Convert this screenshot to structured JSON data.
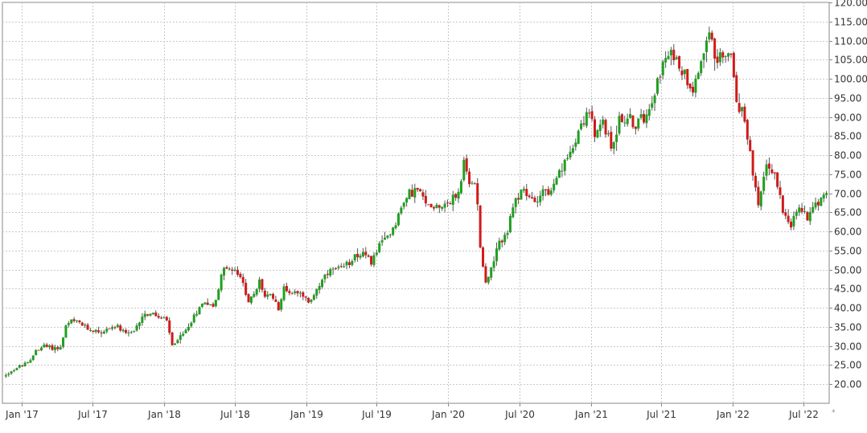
{
  "chart_data": {
    "type": "candlestick",
    "title": "",
    "xlabel": "",
    "ylabel": "",
    "ylim": [
      15,
      120
    ],
    "y_axis_side": "right",
    "grid": true,
    "y_ticks": [
      "20.00",
      "25.00",
      "30.00",
      "35.00",
      "40.00",
      "45.00",
      "50.00",
      "55.00",
      "60.00",
      "65.00",
      "70.00",
      "75.00",
      "80.00",
      "85.00",
      "90.00",
      "95.00",
      "100.00",
      "105.00",
      "110.00",
      "115.00",
      "120.00"
    ],
    "x_ticks": [
      {
        "date": "2017-01-01",
        "label": "Jan '17"
      },
      {
        "date": "2017-07-01",
        "label": "Jul '17"
      },
      {
        "date": "2018-01-01",
        "label": "Jan '18"
      },
      {
        "date": "2018-07-01",
        "label": "Jul '18"
      },
      {
        "date": "2019-01-01",
        "label": "Jan '19"
      },
      {
        "date": "2019-07-01",
        "label": "Jul '19"
      },
      {
        "date": "2020-01-01",
        "label": "Jan '20"
      },
      {
        "date": "2020-07-01",
        "label": "Jul '20"
      },
      {
        "date": "2021-01-01",
        "label": "Jan '21"
      },
      {
        "date": "2021-07-01",
        "label": "Jul '21"
      },
      {
        "date": "2022-01-01",
        "label": "Jan '22"
      },
      {
        "date": "2022-07-01",
        "label": "Jul '22"
      }
    ],
    "x_start_date": "2016-11-12",
    "x_end_date": "2022-09-05",
    "date_axis_marker": "*",
    "colors": {
      "up": "#1fa01f",
      "down": "#d11a1a",
      "grid": "#c8c8c8",
      "axis": "#888888",
      "text": "#333333"
    },
    "price_path": [
      [
        "2016-11-14",
        22
      ],
      [
        "2016-12-05",
        23.5
      ],
      [
        "2017-01-02",
        25
      ],
      [
        "2017-01-20",
        25.5
      ],
      [
        "2017-02-06",
        29
      ],
      [
        "2017-02-27",
        30
      ],
      [
        "2017-03-20",
        29.5
      ],
      [
        "2017-04-10",
        29.5
      ],
      [
        "2017-04-24",
        35
      ],
      [
        "2017-05-08",
        36.5
      ],
      [
        "2017-05-29",
        36
      ],
      [
        "2017-06-19",
        34.5
      ],
      [
        "2017-07-10",
        34
      ],
      [
        "2017-07-31",
        33.5
      ],
      [
        "2017-08-14",
        35
      ],
      [
        "2017-09-04",
        35
      ],
      [
        "2017-09-25",
        33
      ],
      [
        "2017-10-16",
        33.5
      ],
      [
        "2017-11-06",
        38
      ],
      [
        "2017-11-27",
        38.5
      ],
      [
        "2017-12-18",
        37.5
      ],
      [
        "2018-01-08",
        36.5
      ],
      [
        "2018-01-22",
        30
      ],
      [
        "2018-02-05",
        32
      ],
      [
        "2018-02-19",
        33
      ],
      [
        "2018-03-05",
        35.5
      ],
      [
        "2018-03-26",
        39
      ],
      [
        "2018-04-16",
        42
      ],
      [
        "2018-05-07",
        40
      ],
      [
        "2018-05-21",
        45
      ],
      [
        "2018-06-04",
        51
      ],
      [
        "2018-06-18",
        50
      ],
      [
        "2018-07-09",
        49
      ],
      [
        "2018-07-23",
        46
      ],
      [
        "2018-08-06",
        42
      ],
      [
        "2018-08-20",
        43
      ],
      [
        "2018-09-03",
        47
      ],
      [
        "2018-09-17",
        43
      ],
      [
        "2018-10-08",
        43
      ],
      [
        "2018-10-22",
        40
      ],
      [
        "2018-11-05",
        45
      ],
      [
        "2018-11-26",
        44
      ],
      [
        "2018-12-17",
        44.5
      ],
      [
        "2019-01-07",
        41
      ],
      [
        "2019-01-28",
        45
      ],
      [
        "2019-02-18",
        48
      ],
      [
        "2019-03-11",
        50
      ],
      [
        "2019-04-01",
        50
      ],
      [
        "2019-04-22",
        52
      ],
      [
        "2019-05-06",
        54
      ],
      [
        "2019-05-27",
        54
      ],
      [
        "2019-06-17",
        52
      ],
      [
        "2019-07-01",
        55
      ],
      [
        "2019-07-22",
        58
      ],
      [
        "2019-08-12",
        61
      ],
      [
        "2019-09-02",
        66
      ],
      [
        "2019-09-23",
        70
      ],
      [
        "2019-10-14",
        71
      ],
      [
        "2019-11-04",
        67
      ],
      [
        "2019-11-25",
        67
      ],
      [
        "2019-12-16",
        67
      ],
      [
        "2020-01-06",
        68
      ],
      [
        "2020-01-27",
        70
      ],
      [
        "2020-02-10",
        78
      ],
      [
        "2020-02-24",
        72
      ],
      [
        "2020-03-09",
        73
      ],
      [
        "2020-03-16",
        68
      ],
      [
        "2020-03-23",
        56
      ],
      [
        "2020-04-06",
        47
      ],
      [
        "2020-04-20",
        50
      ],
      [
        "2020-05-11",
        57
      ],
      [
        "2020-06-01",
        60
      ],
      [
        "2020-06-15",
        66
      ],
      [
        "2020-07-06",
        71
      ],
      [
        "2020-07-20",
        69
      ],
      [
        "2020-08-10",
        68
      ],
      [
        "2020-08-31",
        71
      ],
      [
        "2020-09-21",
        70
      ],
      [
        "2020-10-12",
        75
      ],
      [
        "2020-11-02",
        79
      ],
      [
        "2020-11-16",
        83
      ],
      [
        "2020-12-07",
        88
      ],
      [
        "2020-12-28",
        92
      ],
      [
        "2021-01-11",
        84
      ],
      [
        "2021-02-01",
        89
      ],
      [
        "2021-02-22",
        82
      ],
      [
        "2021-03-15",
        89
      ],
      [
        "2021-04-05",
        90
      ],
      [
        "2021-04-26",
        88
      ],
      [
        "2021-05-17",
        90
      ],
      [
        "2021-06-07",
        95
      ],
      [
        "2021-06-28",
        102
      ],
      [
        "2021-07-19",
        106
      ],
      [
        "2021-08-09",
        106
      ],
      [
        "2021-08-30",
        101
      ],
      [
        "2021-09-20",
        98
      ],
      [
        "2021-10-11",
        105
      ],
      [
        "2021-11-01",
        114
      ],
      [
        "2021-11-15",
        104
      ],
      [
        "2021-12-06",
        107
      ],
      [
        "2021-12-27",
        106
      ],
      [
        "2022-01-10",
        94
      ],
      [
        "2022-01-31",
        90
      ],
      [
        "2022-02-14",
        80
      ],
      [
        "2022-03-07",
        66
      ],
      [
        "2022-03-28",
        78
      ],
      [
        "2022-04-18",
        75
      ],
      [
        "2022-05-09",
        66
      ],
      [
        "2022-05-30",
        62
      ],
      [
        "2022-06-20",
        66
      ],
      [
        "2022-07-11",
        64
      ],
      [
        "2022-07-25",
        67
      ],
      [
        "2022-08-08",
        68
      ],
      [
        "2022-08-22",
        69
      ],
      [
        "2022-09-02",
        69
      ]
    ]
  }
}
